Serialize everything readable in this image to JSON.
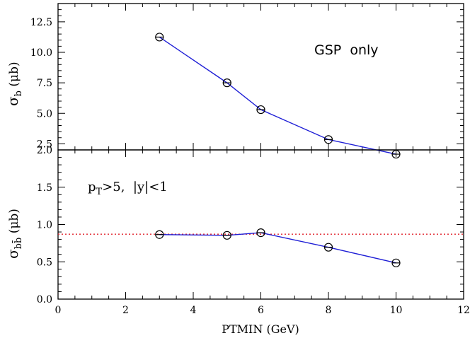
{
  "chart_data": [
    {
      "type": "line",
      "panel": "top",
      "ylabel": "σ_b (μb)",
      "ylabel_symbol": "σ",
      "ylabel_subscript": "b",
      "ylabel_unit": "(μb)",
      "annotation": "GSP  only",
      "ylim": [
        2.0,
        14.0
      ],
      "yticks": [
        "2.0",
        "2.5",
        "5.0",
        "7.5",
        "10.0",
        "12.5"
      ],
      "series": [
        {
          "x": [
            3,
            5,
            6,
            8,
            10
          ],
          "y": [
            11.25,
            7.5,
            5.3,
            2.85,
            1.65
          ]
        }
      ]
    },
    {
      "type": "line",
      "panel": "bottom",
      "ylabel": "σ_bb̄ (μb)",
      "ylabel_symbol": "σ",
      "ylabel_subscript": "bb̄",
      "ylabel_unit": "(μb)",
      "annotation_base": "p",
      "annotation_sub": "T",
      "annotation_rest": ">5,  |y|<1",
      "ylim": [
        0.0,
        2.0
      ],
      "yticks": [
        "0.0",
        "0.5",
        "1.0",
        "1.5"
      ],
      "reference_y": 0.87,
      "series": [
        {
          "x": [
            3,
            5,
            6,
            8,
            10
          ],
          "y": [
            0.865,
            0.855,
            0.89,
            0.695,
            0.485
          ]
        }
      ]
    }
  ],
  "xaxis": {
    "label": "PTMIN (GeV)",
    "xlim": [
      0,
      12
    ],
    "ticks": [
      "0",
      "2",
      "4",
      "6",
      "8",
      "10",
      "12"
    ]
  },
  "colors": {
    "series": "#1f1fd6",
    "reference": "#e0202a",
    "marker": "#000000"
  }
}
